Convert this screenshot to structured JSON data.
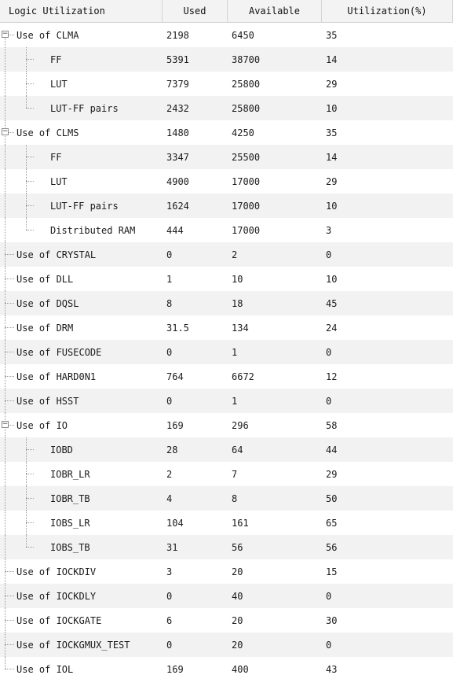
{
  "header": {
    "col_name": "Logic Utilization",
    "col_used": "Used",
    "col_available": "Available",
    "col_util": "Utilization(%)"
  },
  "rows": [
    {
      "name": "Use of CLMA",
      "used": "2198",
      "available": "6450",
      "util": "35",
      "level": 0,
      "expandable": true
    },
    {
      "name": "FF",
      "used": "5391",
      "available": "38700",
      "util": "14",
      "level": 1
    },
    {
      "name": "LUT",
      "used": "7379",
      "available": "25800",
      "util": "29",
      "level": 1
    },
    {
      "name": "LUT-FF pairs",
      "used": "2432",
      "available": "25800",
      "util": "10",
      "level": 1,
      "last_child": true
    },
    {
      "name": "Use of CLMS",
      "used": "1480",
      "available": "4250",
      "util": "35",
      "level": 0,
      "expandable": true
    },
    {
      "name": "FF",
      "used": "3347",
      "available": "25500",
      "util": "14",
      "level": 1
    },
    {
      "name": "LUT",
      "used": "4900",
      "available": "17000",
      "util": "29",
      "level": 1
    },
    {
      "name": "LUT-FF pairs",
      "used": "1624",
      "available": "17000",
      "util": "10",
      "level": 1
    },
    {
      "name": "Distributed RAM",
      "used": "444",
      "available": "17000",
      "util": "3",
      "level": 1,
      "last_child": true
    },
    {
      "name": "Use of CRYSTAL",
      "used": "0",
      "available": "2",
      "util": "0",
      "level": 0
    },
    {
      "name": "Use of DLL",
      "used": "1",
      "available": "10",
      "util": "10",
      "level": 0
    },
    {
      "name": "Use of DQSL",
      "used": "8",
      "available": "18",
      "util": "45",
      "level": 0
    },
    {
      "name": "Use of DRM",
      "used": "31.5",
      "available": "134",
      "util": "24",
      "level": 0
    },
    {
      "name": "Use of FUSECODE",
      "used": "0",
      "available": "1",
      "util": "0",
      "level": 0
    },
    {
      "name": "Use of HARD0N1",
      "used": "764",
      "available": "6672",
      "util": "12",
      "level": 0
    },
    {
      "name": "Use of HSST",
      "used": "0",
      "available": "1",
      "util": "0",
      "level": 0
    },
    {
      "name": "Use of IO",
      "used": "169",
      "available": "296",
      "util": "58",
      "level": 0,
      "expandable": true
    },
    {
      "name": "IOBD",
      "used": "28",
      "available": "64",
      "util": "44",
      "level": 1
    },
    {
      "name": "IOBR_LR",
      "used": "2",
      "available": "7",
      "util": "29",
      "level": 1
    },
    {
      "name": "IOBR_TB",
      "used": "4",
      "available": "8",
      "util": "50",
      "level": 1
    },
    {
      "name": "IOBS_LR",
      "used": "104",
      "available": "161",
      "util": "65",
      "level": 1
    },
    {
      "name": "IOBS_TB",
      "used": "31",
      "available": "56",
      "util": "56",
      "level": 1,
      "last_child": true
    },
    {
      "name": "Use of IOCKDIV",
      "used": "3",
      "available": "20",
      "util": "15",
      "level": 0
    },
    {
      "name": "Use of IOCKDLY",
      "used": "0",
      "available": "40",
      "util": "0",
      "level": 0
    },
    {
      "name": "Use of IOCKGATE",
      "used": "6",
      "available": "20",
      "util": "30",
      "level": 0
    },
    {
      "name": "Use of IOCKGMUX_TEST",
      "used": "0",
      "available": "20",
      "util": "0",
      "level": 0
    },
    {
      "name": "Use of IOL",
      "used": "169",
      "available": "400",
      "util": "43",
      "level": 0
    }
  ],
  "icons": {
    "expander": "minus-box-icon"
  },
  "colors": {
    "alt_row": "#f2f2f2",
    "header_bg": "#f3f3f3"
  }
}
